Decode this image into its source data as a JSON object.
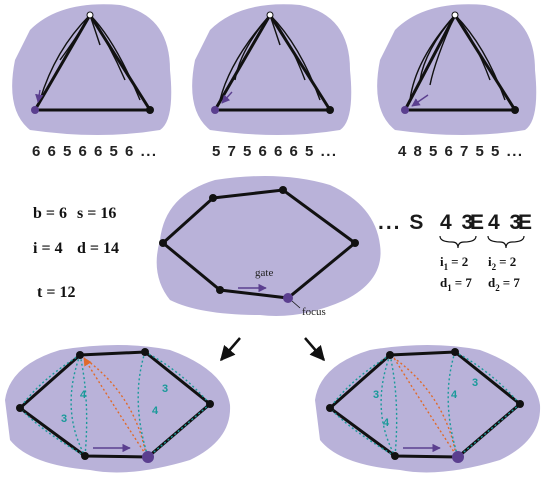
{
  "top_sequences": [
    "6 6 5 6 6 5 6 ...",
    "5 7 5 6 6 6 5 ...",
    "4 8 5 6 7 5 5 ..."
  ],
  "params": {
    "b": "b = 6",
    "s": "s = 16",
    "i": "i = 4",
    "d": "d = 14",
    "t": "t = 12"
  },
  "labels": {
    "gate": "gate",
    "focus": "focus"
  },
  "word": {
    "prefix": "... S",
    "part1": "4 3",
    "mid": "E",
    "part2": "4 3",
    "end": "E"
  },
  "subscripts": {
    "i1": "i",
    "i1_sub": "1",
    "i1_val": "= 2",
    "d1": "d",
    "d1_sub": "1",
    "d1_val": "= 7",
    "i2": "i",
    "i2_sub": "2",
    "i2_val": "= 2",
    "d2": "d",
    "d2_sub": "2",
    "d2_val": "= 7"
  },
  "edge_labels": {
    "left": [
      "4",
      "3",
      "4",
      "3"
    ],
    "right": [
      "3",
      "4",
      "4",
      "3"
    ]
  },
  "colors": {
    "face": "#b9b2d9",
    "teal": "#1a9a9a",
    "orange": "#e06a2a",
    "focus": "#5b3f8f",
    "gate_arrow": "#5b3f8f"
  }
}
